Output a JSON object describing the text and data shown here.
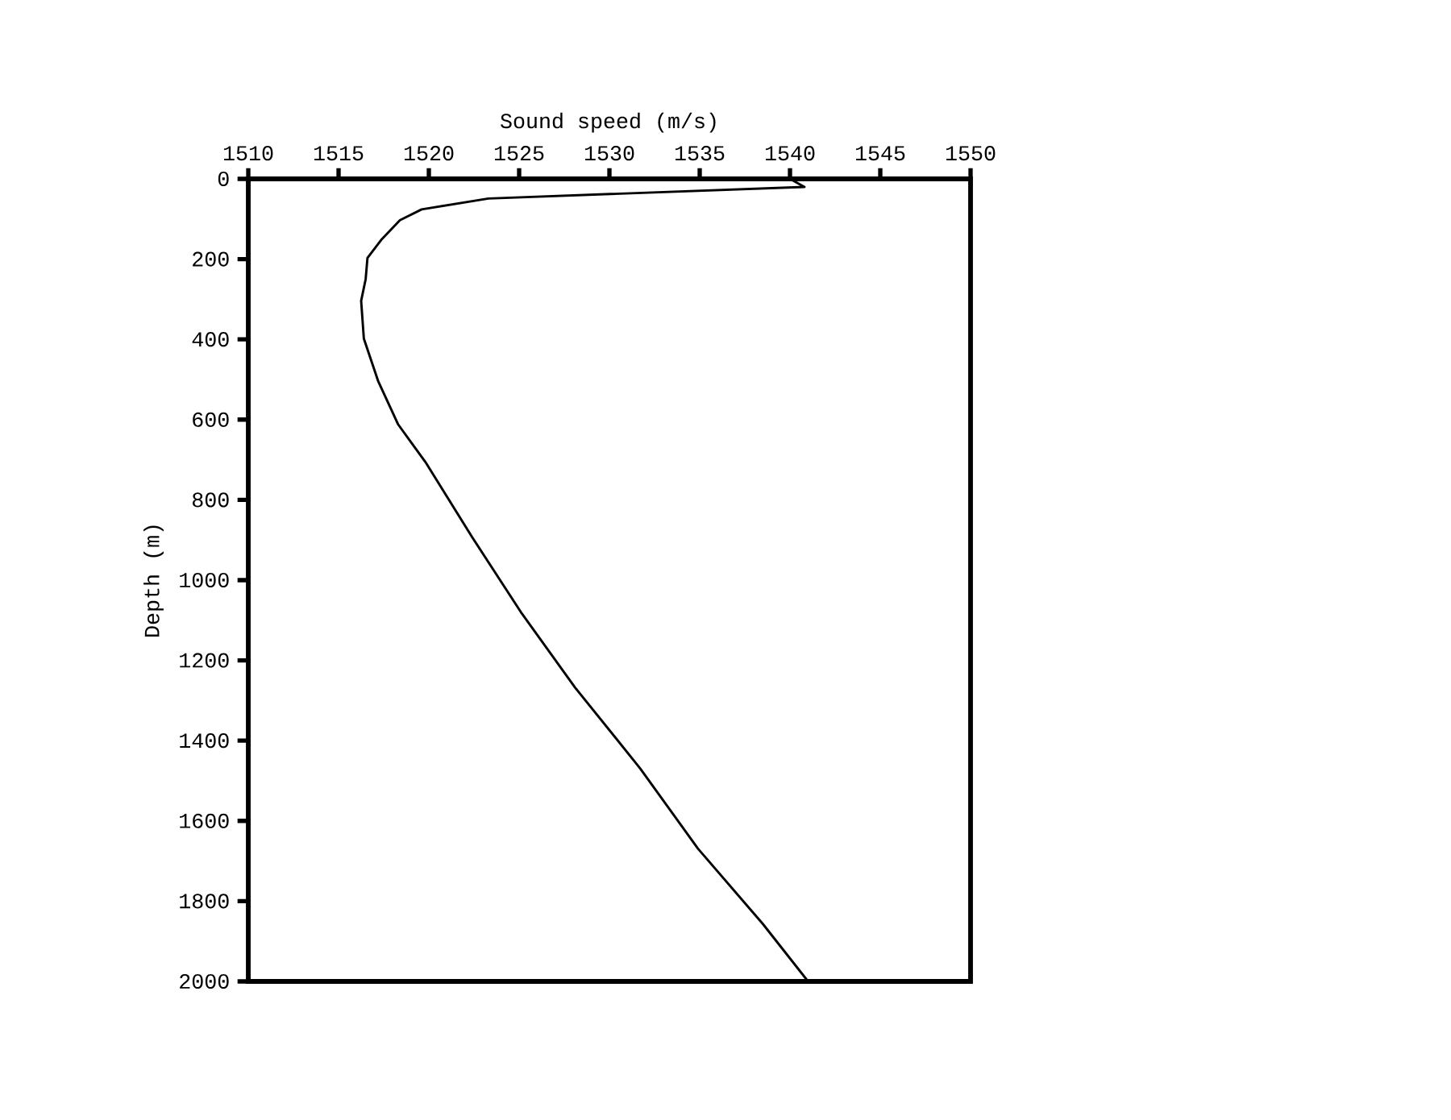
{
  "chart_data": {
    "type": "line",
    "xlabel": "Sound speed (m/s)",
    "ylabel": "Depth (m)",
    "x": [
      1540.0,
      1540.8,
      1523.3,
      1519.6,
      1518.4,
      1517.4,
      1516.6,
      1516.5,
      1516.25,
      1516.4,
      1517.2,
      1518.3,
      1519.8,
      1522.4,
      1525.1,
      1528.1,
      1531.7,
      1534.9,
      1538.5,
      1541.0
    ],
    "values": [
      0,
      20,
      49,
      76,
      103,
      150,
      197,
      250,
      304,
      398,
      505,
      612,
      705,
      893,
      1080,
      1268,
      1469,
      1669,
      1857,
      2000
    ],
    "color": "#000000",
    "line_style": "solid",
    "xlim": [
      1510,
      1550
    ],
    "xticks": [
      1510,
      1515,
      1520,
      1525,
      1530,
      1535,
      1540,
      1545,
      1550
    ],
    "ylim": [
      2000,
      0
    ],
    "yticks": [
      0,
      200,
      400,
      600,
      800,
      1000,
      1200,
      1400,
      1600,
      1800,
      2000
    ]
  }
}
